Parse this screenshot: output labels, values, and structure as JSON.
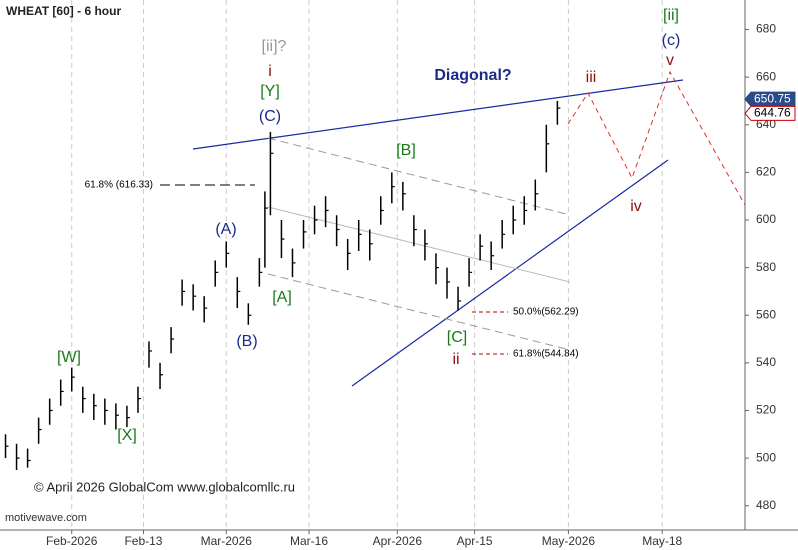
{
  "chart_data": {
    "type": "ohlc",
    "title": "WHEAT [60] - 6 hour",
    "copyright": "© April 2026 GlobalCom www.globalcomllc.ru",
    "watermark": "motivewave.com",
    "color": "#000000",
    "xlim": [
      -13,
      122
    ],
    "xticks": [
      {
        "value": 0,
        "label": "Feb-2026"
      },
      {
        "value": 13,
        "label": "Feb-13"
      },
      {
        "value": 28,
        "label": "Mar-2026"
      },
      {
        "value": 43,
        "label": "Mar-16"
      },
      {
        "value": 59,
        "label": "Apr-2026"
      },
      {
        "value": 73,
        "label": "Apr-15"
      },
      {
        "value": 90,
        "label": "May-2026"
      },
      {
        "value": 107,
        "label": "May-18"
      }
    ],
    "ylim": [
      474,
      684
    ],
    "yticks": [
      480,
      500,
      520,
      540,
      560,
      580,
      600,
      620,
      640,
      660,
      680
    ],
    "x": [
      -12,
      -10,
      -8,
      -6,
      -4,
      -2,
      0,
      2,
      4,
      6,
      8,
      10,
      12,
      14,
      16,
      18,
      20,
      22,
      24,
      26,
      28,
      30,
      32,
      34,
      35,
      36,
      38,
      40,
      42,
      44,
      46,
      48,
      50,
      52,
      54,
      56,
      58,
      60,
      62,
      64,
      66,
      68,
      70,
      72,
      74,
      76,
      78,
      80,
      82,
      84,
      86,
      88
    ],
    "high": [
      510,
      506,
      504,
      517,
      525,
      533,
      538,
      530,
      527,
      525,
      523,
      522,
      530,
      549,
      540,
      555,
      575,
      573,
      568,
      583,
      591,
      576,
      565,
      584,
      612,
      637,
      600,
      588,
      600,
      606,
      610,
      602,
      592,
      600,
      596,
      610,
      620,
      616,
      602,
      596,
      586,
      580,
      572,
      584,
      594,
      591,
      600,
      606,
      610,
      617,
      640,
      650
    ],
    "low": [
      500,
      495,
      496,
      506,
      514,
      522,
      528,
      519,
      516,
      514,
      512,
      513,
      519,
      538,
      529,
      544,
      564,
      562,
      557,
      572,
      580,
      563,
      556,
      572,
      580,
      602,
      584,
      576,
      588,
      594,
      597,
      589,
      579,
      587,
      583,
      598,
      607,
      604,
      589,
      583,
      573,
      567,
      562,
      572,
      583,
      579,
      588,
      594,
      598,
      604,
      620,
      640
    ],
    "close": [
      505,
      500,
      499,
      512,
      520,
      528,
      534,
      525,
      522,
      520,
      518,
      517,
      525,
      545,
      535,
      550,
      570,
      568,
      563,
      578,
      586,
      570,
      560,
      578,
      605,
      628,
      592,
      582,
      595,
      600,
      604,
      596,
      586,
      594,
      590,
      604,
      614,
      611,
      596,
      590,
      580,
      574,
      566,
      578,
      589,
      585,
      594,
      600,
      604,
      611,
      632,
      647
    ],
    "price_tags": [
      650.75,
      644.76
    ],
    "fib_labels": [
      "61.8% (616.33)",
      "50.0%(562.29)",
      "61.8%(544.84)"
    ],
    "wave_labels": [
      "[ii]?",
      "i",
      "[Y]",
      "(C)",
      "(A)",
      "(B)",
      "[W]",
      "[X]",
      "[A]",
      "[B]",
      "[C]",
      "ii",
      "iii",
      "iv",
      "v",
      "[ii]",
      "(c)"
    ],
    "annotation": "Diagonal?"
  }
}
